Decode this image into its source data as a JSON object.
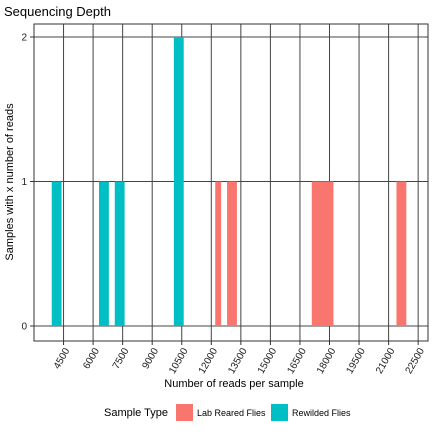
{
  "chart_data": {
    "type": "bar",
    "title": "Sequencing Depth",
    "xlabel": "Number of reads per sample",
    "ylabel": "Samples with x number of reads",
    "xlim": [
      3000,
      23000
    ],
    "ylim": [
      0,
      2
    ],
    "x_ticks": [
      4500,
      6000,
      7500,
      9000,
      10500,
      12000,
      13500,
      15000,
      16500,
      18000,
      19500,
      21000,
      22500
    ],
    "x_tick_labels": [
      "4500",
      "6000",
      "7500",
      "9000",
      "10500",
      "12000",
      "13500",
      "15000",
      "16500",
      "18000",
      "19500",
      "21000",
      "22500"
    ],
    "y_ticks": [
      0,
      1,
      2
    ],
    "y_tick_labels": [
      "0",
      "1",
      "2"
    ],
    "grid": true,
    "legend": {
      "title": "Sample Type",
      "position": "bottom"
    },
    "series": [
      {
        "name": "Lab Reared Flies",
        "color": "#F8766D",
        "bars": [
          {
            "x_start": 12200,
            "x_end": 12500,
            "count": 1
          },
          {
            "x_start": 12800,
            "x_end": 13300,
            "count": 1
          },
          {
            "x_start": 17100,
            "x_end": 18200,
            "count": 1
          },
          {
            "x_start": 21400,
            "x_end": 21900,
            "count": 1
          }
        ]
      },
      {
        "name": "Rewilded Flies",
        "color": "#00BFC4",
        "bars": [
          {
            "x_start": 3900,
            "x_end": 4400,
            "count": 1
          },
          {
            "x_start": 6300,
            "x_end": 6800,
            "count": 1
          },
          {
            "x_start": 7100,
            "x_end": 7600,
            "count": 1
          },
          {
            "x_start": 10100,
            "x_end": 10600,
            "count": 2
          }
        ]
      }
    ]
  }
}
